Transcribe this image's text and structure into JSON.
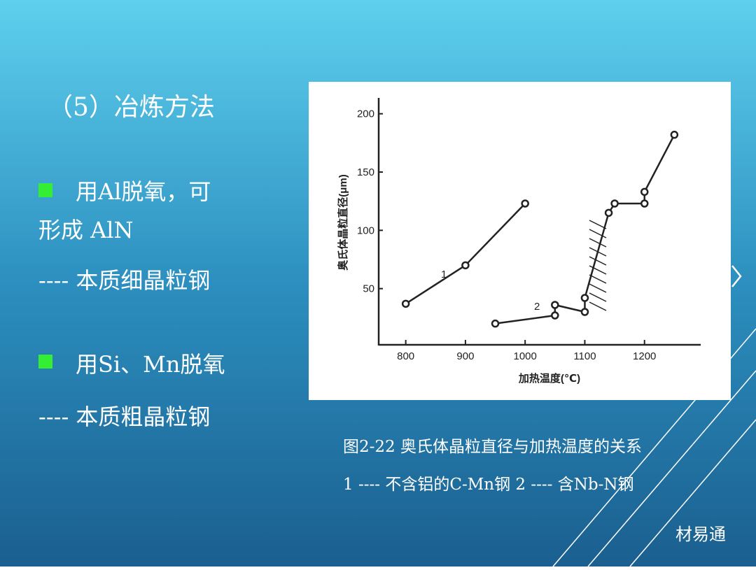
{
  "title": "（5）冶炼方法",
  "bullets": [
    {
      "lines": [
        "用Al脱氧，可",
        "形成 AlN"
      ],
      "note": "---- 本质细晶粒钢"
    },
    {
      "lines": [
        "用Si、Mn脱氧"
      ],
      "note": "---- 本质粗晶粒钢"
    }
  ],
  "caption": [
    "图2-22  奥氏体晶粒直径与加热温度的关系",
    "1 ---- 不含铝的C-Mn钢    2 ---- 含Nb-N钢"
  ],
  "watermark": "材易通",
  "chart_data": {
    "type": "scatter",
    "x_label": "加热温度(℃)",
    "y_label": "奥氏体晶粒直径(μm)",
    "xlim": [
      750,
      1300
    ],
    "ylim": [
      0,
      210
    ],
    "xticks": [
      800,
      900,
      1000,
      1100,
      1200
    ],
    "yticks": [
      50,
      100,
      150,
      200
    ],
    "color": "#222",
    "series": [
      {
        "name": "1",
        "x": [
          800,
          900,
          1000
        ],
        "values": [
          37,
          70,
          123
        ]
      },
      {
        "name": "2",
        "x": [
          950,
          1050,
          1050,
          1100,
          1100,
          1140,
          1150,
          1200,
          1200,
          1250
        ],
        "values": [
          20,
          27,
          36,
          30,
          42,
          115,
          123,
          123,
          133,
          182
        ]
      }
    ]
  }
}
